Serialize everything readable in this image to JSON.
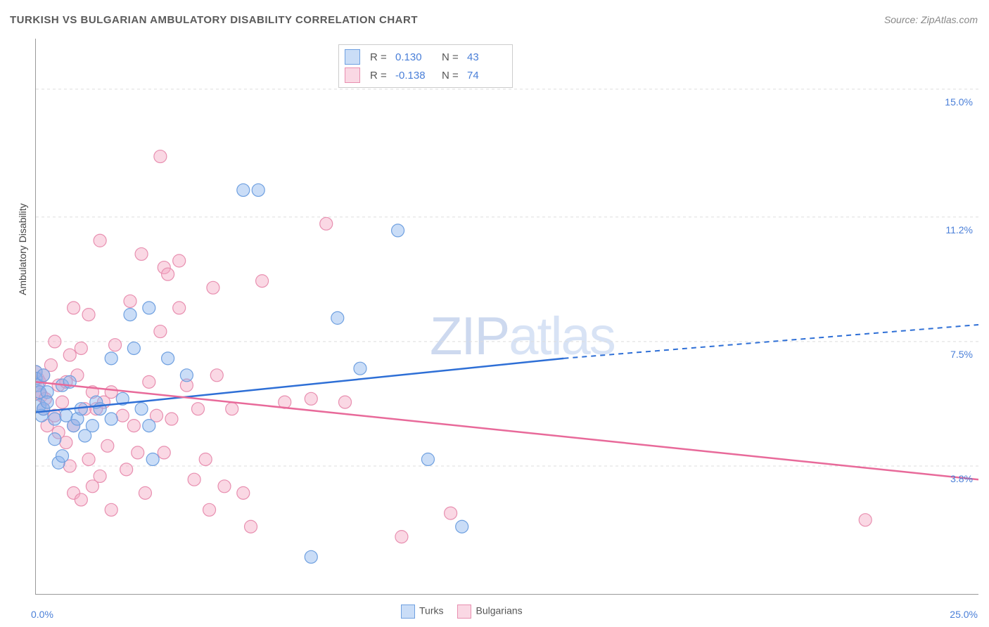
{
  "title": "TURKISH VS BULGARIAN AMBULATORY DISABILITY CORRELATION CHART",
  "source": "Source: ZipAtlas.com",
  "watermark_a": "ZIP",
  "watermark_b": "atlas",
  "axes": {
    "y_label": "Ambulatory Disability",
    "x_min_label": "0.0%",
    "x_max_label": "25.0%",
    "x_min": 0,
    "x_max": 25,
    "y_min": 0,
    "y_max": 16.5,
    "x_ticks": [
      0,
      2.5,
      5,
      7.5,
      10,
      12.5,
      15,
      17.5,
      20,
      22.5,
      25
    ],
    "y_gridlines": [
      {
        "y": 3.8,
        "label": "3.8%"
      },
      {
        "y": 7.5,
        "label": "7.5%"
      },
      {
        "y": 11.2,
        "label": "11.2%"
      },
      {
        "y": 15.0,
        "label": "15.0%"
      }
    ]
  },
  "colors": {
    "turks_fill": "rgba(138,180,238,0.45)",
    "turks_stroke": "#6fa0e0",
    "turks_line": "#2e6fd6",
    "bulgarians_fill": "rgba(244,168,195,0.45)",
    "bulgarians_stroke": "#e88fb0",
    "bulgarians_line": "#e86a9a",
    "axis_text": "#4a7fd8",
    "grid": "#dddddd"
  },
  "marker_radius": 9,
  "stats_box": {
    "rows": [
      {
        "series": "turks",
        "r_label": "R =",
        "r": "0.130",
        "n_label": "N =",
        "n": "43"
      },
      {
        "series": "bulgarians",
        "r_label": "R =",
        "r": "-0.138",
        "n_label": "N =",
        "n": "74"
      }
    ]
  },
  "legend": {
    "turks": "Turks",
    "bulgarians": "Bulgarians"
  },
  "regression": {
    "turks": {
      "y_at_xmin": 5.4,
      "y_at_14": 7.0,
      "y_at_xmax": 8.0,
      "solid_until_x": 14
    },
    "bulgarians": {
      "y_at_xmin": 6.3,
      "y_at_xmax": 3.4
    }
  },
  "series": {
    "turks": [
      [
        0.0,
        6.6
      ],
      [
        0.0,
        6.4
      ],
      [
        0.05,
        6.2
      ],
      [
        0.1,
        6.0
      ],
      [
        0.1,
        5.6
      ],
      [
        0.15,
        5.3
      ],
      [
        0.2,
        6.5
      ],
      [
        0.2,
        5.5
      ],
      [
        0.3,
        6.0
      ],
      [
        0.3,
        5.7
      ],
      [
        0.5,
        4.6
      ],
      [
        0.5,
        5.2
      ],
      [
        0.6,
        3.9
      ],
      [
        0.7,
        6.2
      ],
      [
        0.7,
        4.1
      ],
      [
        0.8,
        5.3
      ],
      [
        0.9,
        6.3
      ],
      [
        1.0,
        5.0
      ],
      [
        1.1,
        5.2
      ],
      [
        1.2,
        5.5
      ],
      [
        1.3,
        4.7
      ],
      [
        1.5,
        5.0
      ],
      [
        1.6,
        5.7
      ],
      [
        1.7,
        5.5
      ],
      [
        2.0,
        5.2
      ],
      [
        2.0,
        7.0
      ],
      [
        2.3,
        5.8
      ],
      [
        2.5,
        8.3
      ],
      [
        2.6,
        7.3
      ],
      [
        2.8,
        5.5
      ],
      [
        3.0,
        8.5
      ],
      [
        3.0,
        5.0
      ],
      [
        3.1,
        4.0
      ],
      [
        3.5,
        7.0
      ],
      [
        4.0,
        6.5
      ],
      [
        5.5,
        12.0
      ],
      [
        5.9,
        12.0
      ],
      [
        8.0,
        8.2
      ],
      [
        8.6,
        6.7
      ],
      [
        9.6,
        10.8
      ],
      [
        10.4,
        4.0
      ],
      [
        11.3,
        2.0
      ],
      [
        7.3,
        1.1
      ]
    ],
    "bulgarians": [
      [
        0.0,
        6.6
      ],
      [
        0.05,
        6.4
      ],
      [
        0.1,
        6.3
      ],
      [
        0.1,
        6.0
      ],
      [
        0.15,
        5.9
      ],
      [
        0.2,
        6.5
      ],
      [
        0.2,
        5.5
      ],
      [
        0.25,
        5.8
      ],
      [
        0.3,
        5.0
      ],
      [
        0.4,
        6.8
      ],
      [
        0.5,
        7.5
      ],
      [
        0.5,
        5.3
      ],
      [
        0.6,
        6.2
      ],
      [
        0.6,
        4.8
      ],
      [
        0.7,
        5.7
      ],
      [
        0.8,
        6.3
      ],
      [
        0.8,
        4.5
      ],
      [
        0.9,
        7.1
      ],
      [
        0.9,
        3.8
      ],
      [
        1.0,
        5.0
      ],
      [
        1.0,
        8.5
      ],
      [
        1.0,
        3.0
      ],
      [
        1.1,
        6.5
      ],
      [
        1.2,
        7.3
      ],
      [
        1.2,
        2.8
      ],
      [
        1.3,
        5.5
      ],
      [
        1.4,
        8.3
      ],
      [
        1.4,
        4.0
      ],
      [
        1.5,
        6.0
      ],
      [
        1.5,
        3.2
      ],
      [
        1.6,
        5.5
      ],
      [
        1.7,
        10.5
      ],
      [
        1.7,
        3.5
      ],
      [
        1.8,
        5.7
      ],
      [
        1.9,
        4.4
      ],
      [
        2.0,
        6.0
      ],
      [
        2.0,
        2.5
      ],
      [
        2.1,
        7.4
      ],
      [
        2.3,
        5.3
      ],
      [
        2.4,
        3.7
      ],
      [
        2.5,
        8.7
      ],
      [
        2.6,
        5.0
      ],
      [
        2.7,
        4.2
      ],
      [
        2.8,
        10.1
      ],
      [
        2.9,
        3.0
      ],
      [
        3.0,
        6.3
      ],
      [
        3.2,
        5.3
      ],
      [
        3.3,
        13.0
      ],
      [
        3.3,
        7.8
      ],
      [
        3.4,
        9.7
      ],
      [
        3.4,
        4.2
      ],
      [
        3.5,
        9.5
      ],
      [
        3.6,
        5.2
      ],
      [
        3.8,
        8.5
      ],
      [
        3.8,
        9.9
      ],
      [
        4.0,
        6.2
      ],
      [
        4.2,
        3.4
      ],
      [
        4.3,
        5.5
      ],
      [
        4.5,
        4.0
      ],
      [
        4.6,
        2.5
      ],
      [
        4.7,
        9.1
      ],
      [
        4.8,
        6.5
      ],
      [
        5.0,
        3.2
      ],
      [
        5.2,
        5.5
      ],
      [
        5.5,
        3.0
      ],
      [
        5.7,
        2.0
      ],
      [
        6.0,
        9.3
      ],
      [
        6.6,
        5.7
      ],
      [
        7.3,
        5.8
      ],
      [
        7.7,
        11.0
      ],
      [
        8.2,
        5.7
      ],
      [
        9.7,
        1.7
      ],
      [
        11.0,
        2.4
      ],
      [
        22.0,
        2.2
      ]
    ]
  }
}
